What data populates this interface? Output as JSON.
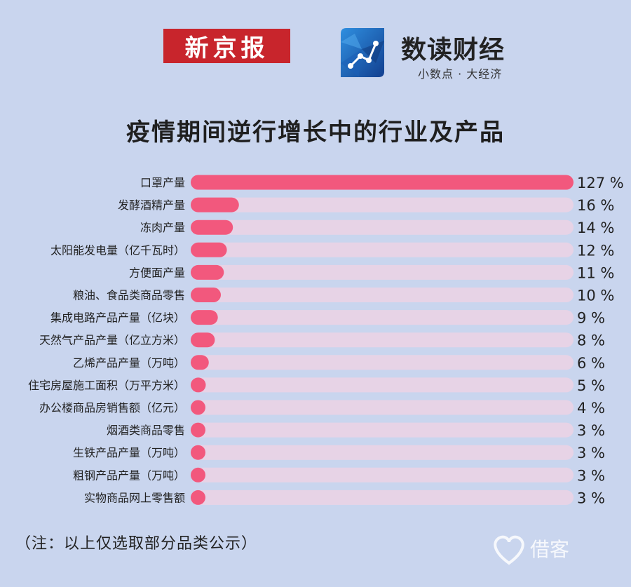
{
  "header": {
    "logo_xjb": "新京报",
    "logo_sd_title": "数读财经",
    "logo_sd_sub": "小数点 · 大经济"
  },
  "chart_data": {
    "type": "bar",
    "orientation": "horizontal",
    "title": "疫情期间逆行增长中的行业及产品",
    "xlabel": "",
    "ylabel": "",
    "grid": false,
    "legend": "none",
    "xlim": [
      0,
      127
    ],
    "categories": [
      "口罩产量",
      "发酵酒精产量",
      "冻肉产量",
      "太阳能发电量（亿千瓦时）",
      "方便面产量",
      "粮油、食品类商品零售",
      "集成电路产品产量（亿块）",
      "天然气产品产量（亿立方米）",
      "乙烯产品产量（万吨）",
      "住宅房屋施工面积（万平方米）",
      "办公楼商品房销售额（亿元）",
      "烟酒类商品零售",
      "生铁产品产量（万吨）",
      "粗钢产品产量（万吨）",
      "实物商品网上零售额"
    ],
    "values": [
      127,
      16,
      14,
      12,
      11,
      10,
      9,
      8,
      6,
      5,
      4,
      3,
      3,
      3,
      3
    ],
    "value_labels": [
      "127 %",
      "16 %",
      "14 %",
      "12 %",
      "11 %",
      "10 %",
      "9 %",
      "8 %",
      "6 %",
      "5 %",
      "4 %",
      "3 %",
      "3 %",
      "3 %",
      "3 %"
    ],
    "colors": {
      "bar": "#f2587d",
      "track": "#e7d3e6",
      "background": "#c9d5ee"
    }
  },
  "footer": {
    "note": "（注：以上仅选取部分品类公示）",
    "watermark": "借客"
  }
}
